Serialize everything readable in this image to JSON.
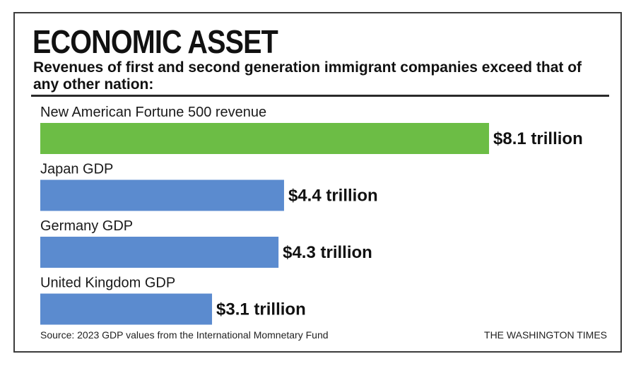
{
  "header": {
    "title": "ECONOMIC ASSET",
    "subtitle": "Revenues of first and second generation immigrant companies exceed that of any other nation:"
  },
  "footer": {
    "source": "Source: 2023 GDP values from the International Momnetary Fund",
    "brand": "THE WASHINGTON TIMES"
  },
  "chart_data": {
    "type": "bar",
    "orientation": "horizontal",
    "categories": [
      "New American Fortune 500 revenue",
      "Japan GDP",
      "Germany GDP",
      "United Kingdom GDP"
    ],
    "values": [
      8.1,
      4.4,
      4.3,
      3.1
    ],
    "value_labels": [
      "$8.1 trillion",
      "$4.4 trillion",
      "$4.3 trillion",
      "$3.1 trillion"
    ],
    "unit": "trillion",
    "colors": [
      "#6cbd45",
      "#5b8bcf",
      "#5b8bcf",
      "#5b8bcf"
    ],
    "grid": false,
    "legend": "none"
  }
}
